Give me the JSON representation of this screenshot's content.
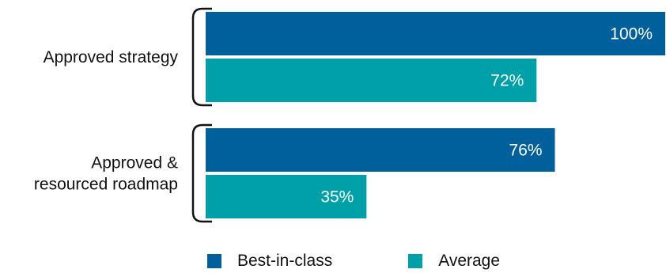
{
  "chart_data": {
    "type": "bar",
    "orientation": "horizontal",
    "categories": [
      "Approved strategy",
      "Approved & resourced roadmap"
    ],
    "series": [
      {
        "name": "Best-in-class",
        "values": [
          100,
          76
        ],
        "labels": [
          "100%",
          "76%"
        ],
        "color": "#00609C"
      },
      {
        "name": "Average",
        "values": [
          72,
          35
        ],
        "labels": [
          "72%",
          "35%"
        ],
        "color": "#00A0A8"
      }
    ],
    "xlim": [
      0,
      100
    ],
    "grid": false,
    "legend_position": "bottom"
  }
}
